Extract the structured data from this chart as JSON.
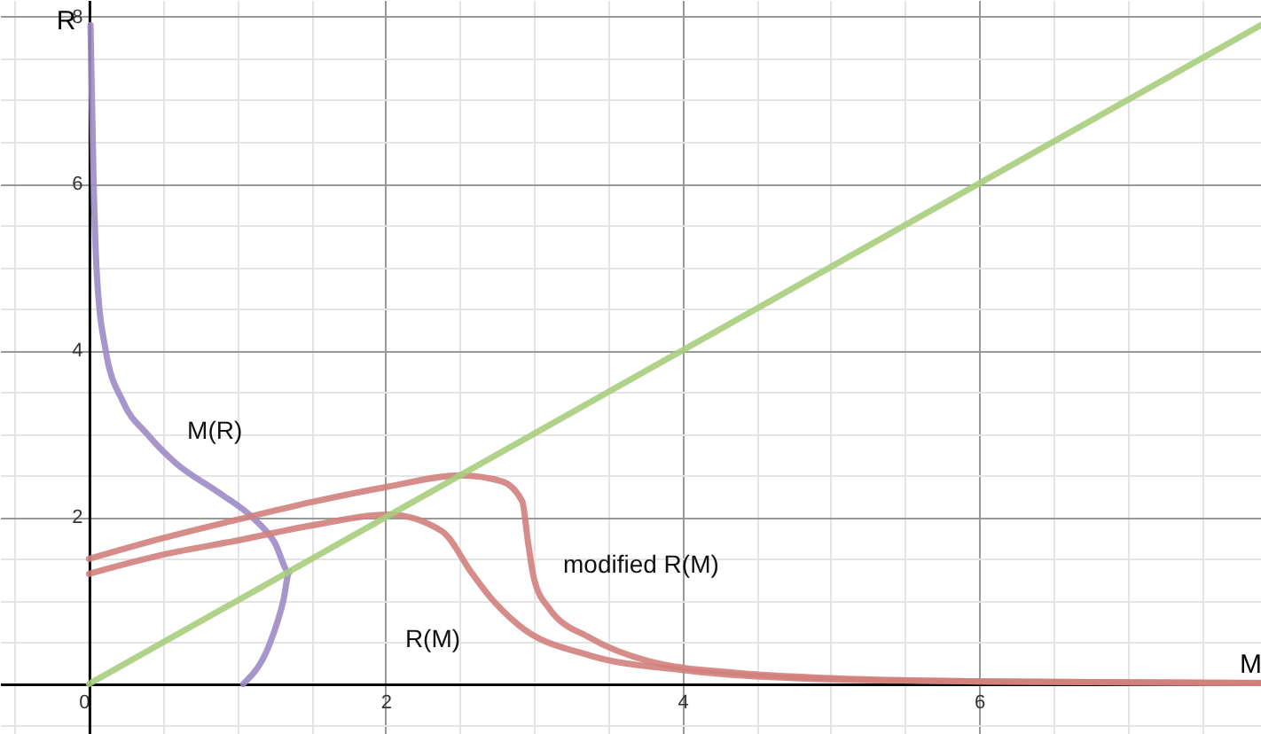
{
  "chart_data": {
    "type": "line",
    "xlabel": "M",
    "ylabel": "R",
    "xlim": [
      -0.6,
      7.9
    ],
    "ylim": [
      -0.6,
      8.2
    ],
    "xticks": [
      {
        "value": -0.5,
        "label": null
      },
      {
        "value": 0,
        "label": "0"
      },
      {
        "value": 0.5,
        "label": null
      },
      {
        "value": 1,
        "label": null
      },
      {
        "value": 1.5,
        "label": null
      },
      2,
      {
        "value": 2.5,
        "label": null
      },
      {
        "value": 3,
        "label": null
      },
      {
        "value": 3.5,
        "label": null
      },
      4,
      {
        "value": 4.5,
        "label": null
      },
      {
        "value": 5,
        "label": null
      },
      {
        "value": 5.5,
        "label": null
      },
      6,
      {
        "value": 6.5,
        "label": null
      },
      {
        "value": 7,
        "label": null
      },
      {
        "value": 7.5,
        "label": null
      }
    ],
    "yticks": [
      {
        "value": -0.5,
        "label": null
      },
      {
        "value": 0,
        "label": null
      },
      {
        "value": 0.5,
        "label": null
      },
      {
        "value": 1,
        "label": null
      },
      {
        "value": 1.5,
        "label": null
      },
      2,
      {
        "value": 2.5,
        "label": null
      },
      {
        "value": 3,
        "label": null
      },
      {
        "value": 3.5,
        "label": null
      },
      4,
      {
        "value": 4.5,
        "label": null
      },
      {
        "value": 5,
        "label": null
      },
      {
        "value": 5.5,
        "label": null
      },
      6,
      {
        "value": 6.5,
        "label": null
      },
      {
        "value": 7,
        "label": null
      },
      {
        "value": 7.5,
        "label": null
      },
      8
    ],
    "grid": true,
    "series": [
      {
        "name": "M(R)",
        "color": "#9d8bc6",
        "x": [
          1.04,
          1.22,
          1.31,
          1.35,
          1.25,
          1.1,
          0.87,
          0.59,
          0.39,
          0.23,
          0.11,
          0.05,
          0.03,
          0.01
        ],
        "values": [
          0,
          0.49,
          1,
          1.34,
          1.7,
          2,
          2.3,
          2.64,
          3,
          3.38,
          4.02,
          5,
          6.1,
          7.9
        ]
      },
      {
        "name": "R(M)",
        "color": "#d27f7c",
        "x": [
          0,
          0.5,
          1,
          1.5,
          2.02,
          2.38,
          2.58,
          2.7,
          2.9,
          3.38,
          3.98,
          4.9,
          6,
          7.9
        ],
        "values": [
          1.32,
          1.55,
          1.72,
          1.9,
          2.03,
          1.83,
          1.33,
          1.05,
          0.7,
          0.34,
          0.17,
          0.06,
          0.03,
          0.01
        ]
      },
      {
        "name": "modified R(M)",
        "color": "#d27f7c",
        "x": [
          0,
          0.5,
          1,
          1.5,
          2,
          2.5,
          2.78,
          2.92,
          2.96,
          3,
          3.1,
          3.38,
          3.78,
          4.38,
          5,
          6,
          7.9
        ],
        "values": [
          1.5,
          1.75,
          1.97,
          2.18,
          2.36,
          2.5,
          2.43,
          2.19,
          1.69,
          1.26,
          0.91,
          0.55,
          0.27,
          0.13,
          0.07,
          0.03,
          0.01
        ]
      },
      {
        "color": "#a9cd7c",
        "x": [
          0,
          7.9
        ],
        "values": [
          0,
          7.9
        ]
      }
    ]
  }
}
